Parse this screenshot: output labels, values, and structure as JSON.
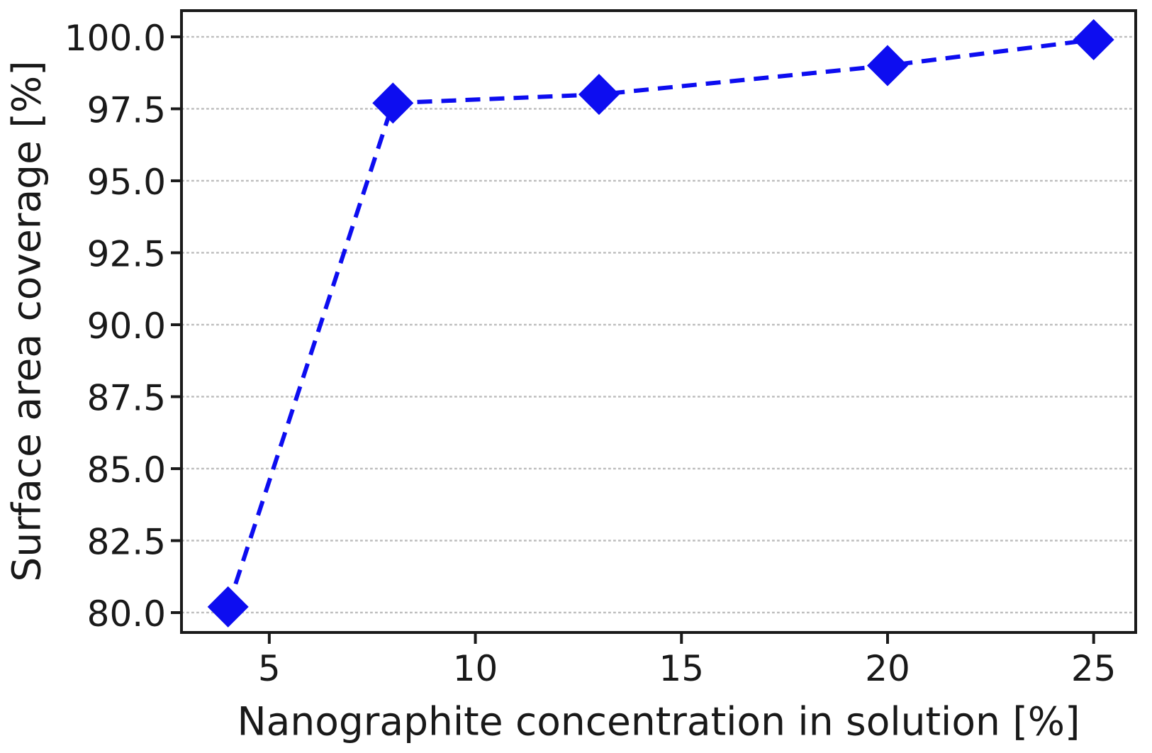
{
  "figure": {
    "background_color": "#ffffff"
  },
  "chart_data": {
    "type": "line",
    "xlabel": "Nanographite concentration in solution [%]",
    "ylabel": "Surface area coverage [%]",
    "series": [
      {
        "name": "surface-area-coverage",
        "x": [
          4,
          8,
          13,
          20,
          25
        ],
        "y": [
          80.2,
          97.7,
          98.0,
          99.0,
          99.9
        ]
      }
    ],
    "xlim": [
      2.87,
      26.02
    ],
    "ylim": [
      79.31,
      100.91
    ],
    "xticks": [
      5,
      10,
      15,
      20,
      25
    ],
    "yticks": [
      80.0,
      82.5,
      85.0,
      87.5,
      90.0,
      92.5,
      95.0,
      97.5,
      100.0
    ],
    "ytick_decimals": 1,
    "xtick_decimals": 0,
    "grid": "horizontal-only",
    "grid_linestyle": "dashed",
    "line_style": "dashed",
    "marker": "diamond",
    "legend": "none",
    "colors": {
      "line": "#0d0df0",
      "marker": "#0d0df0",
      "grid": "#bcbcbc",
      "axis": "#1a1a1a",
      "tick_text": "#191919"
    }
  }
}
